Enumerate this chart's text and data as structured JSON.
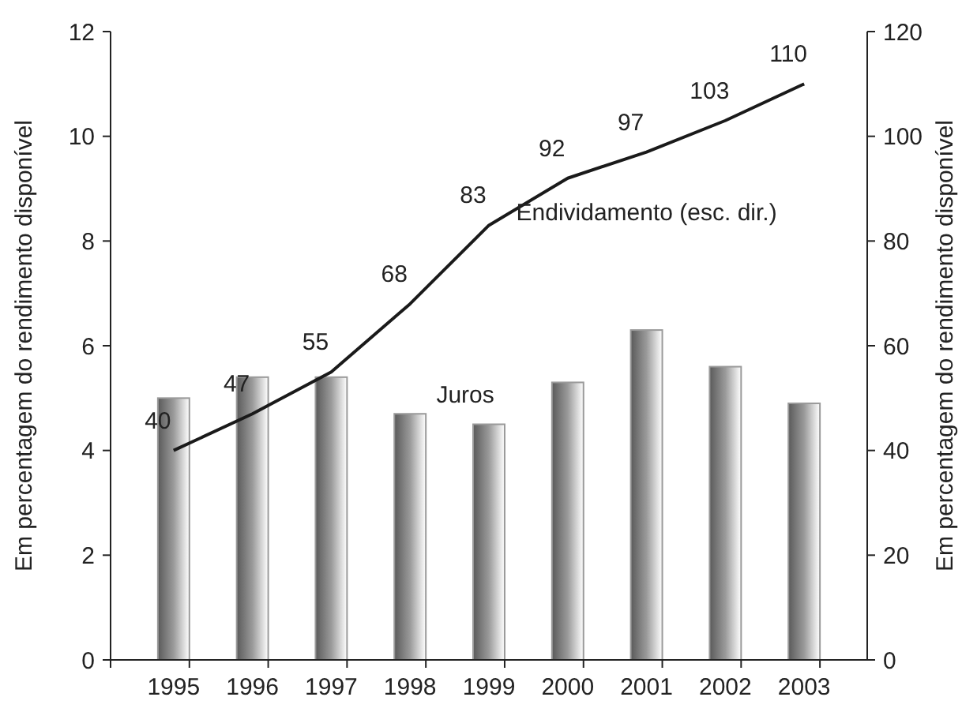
{
  "chart_data": {
    "type": "bar",
    "ylabel": "Em percentagem do rendimento disponível",
    "y2label": "Em percentagem do rendimento disponível",
    "categories": [
      "1995",
      "1996",
      "1997",
      "1998",
      "1999",
      "2000",
      "2001",
      "2002",
      "2003"
    ],
    "series": [
      {
        "name": "Juros",
        "color": "#9a9a9a",
        "values": [
          5.0,
          5.4,
          5.4,
          4.7,
          4.5,
          5.3,
          6.3,
          5.6,
          4.9
        ]
      },
      {
        "name": "Endividamento (esc. dir.)",
        "type": "line",
        "axis": "y2",
        "color": "#1a1a1a",
        "values": [
          40,
          47,
          55,
          68,
          83,
          92,
          97,
          103,
          110
        ],
        "value_labels": [
          "40",
          "47",
          "55",
          "68",
          "83",
          "92",
          "97",
          "103",
          "110"
        ]
      }
    ],
    "ylim": [
      0,
      12
    ],
    "yticks": [
      0,
      2,
      4,
      6,
      8,
      10,
      12
    ],
    "y2lim": [
      0,
      120
    ],
    "y2ticks": [
      0,
      20,
      40,
      60,
      80,
      100,
      120
    ],
    "grid": false
  }
}
